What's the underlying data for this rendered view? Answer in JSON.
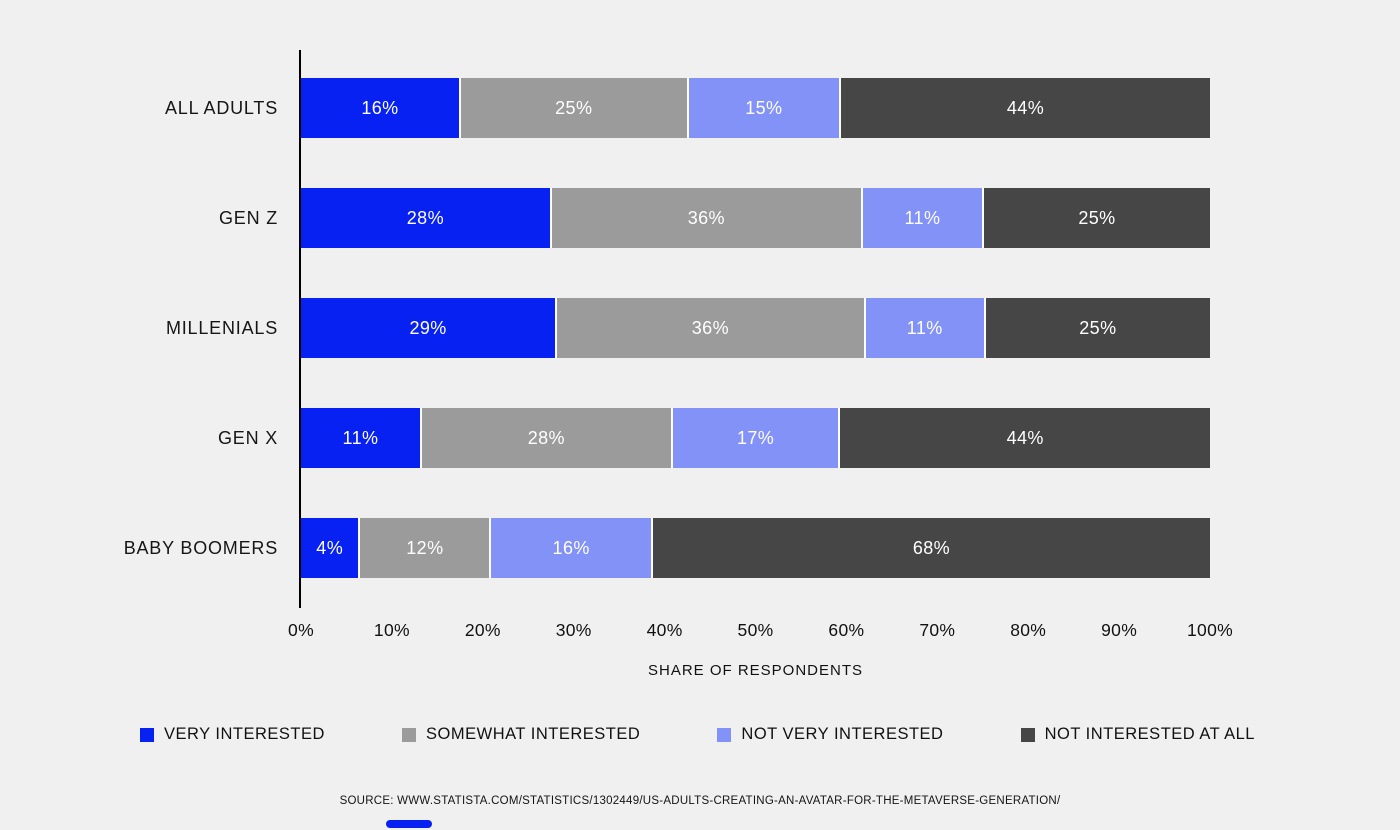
{
  "chart_data": {
    "type": "bar",
    "orientation": "horizontal-stacked",
    "categories": [
      "ALL ADULTS",
      "GEN Z",
      "MILLENIALS",
      "GEN X",
      "BABY BOOMERS"
    ],
    "series": [
      {
        "name": "VERY INTERESTED",
        "color": "#0721f3",
        "values": [
          16,
          28,
          29,
          11,
          4
        ]
      },
      {
        "name": "SOMEWHAT INTERESTED",
        "color": "#9b9b9b",
        "values": [
          25,
          36,
          36,
          28,
          12
        ]
      },
      {
        "name": "NOT VERY INTERESTED",
        "color": "#8292f7",
        "values": [
          15,
          11,
          11,
          17,
          16
        ]
      },
      {
        "name": "NOT INTERESTED AT ALL",
        "color": "#464646",
        "values": [
          44,
          25,
          25,
          44,
          68
        ]
      }
    ],
    "value_suffix": "%",
    "xlabel": "SHARE OF RESPONDENTS",
    "x_ticks": [
      "0%",
      "10%",
      "20%",
      "30%",
      "40%",
      "50%",
      "60%",
      "70%",
      "80%",
      "90%",
      "100%"
    ],
    "xlim": [
      0,
      100
    ],
    "grid": false,
    "legend_position": "bottom"
  },
  "source_text": "SOURCE: WWW.STATISTA.COM/STATISTICS/1302449/US-ADULTS-CREATING-AN-AVATAR-FOR-THE-METAVERSE-GENERATION/",
  "colors": {
    "background": "#f0f0f0",
    "axis_line": "#000000",
    "bar_value_text": "#ffffff",
    "label_text": "#161616",
    "accent_bar": "#0721f3"
  }
}
